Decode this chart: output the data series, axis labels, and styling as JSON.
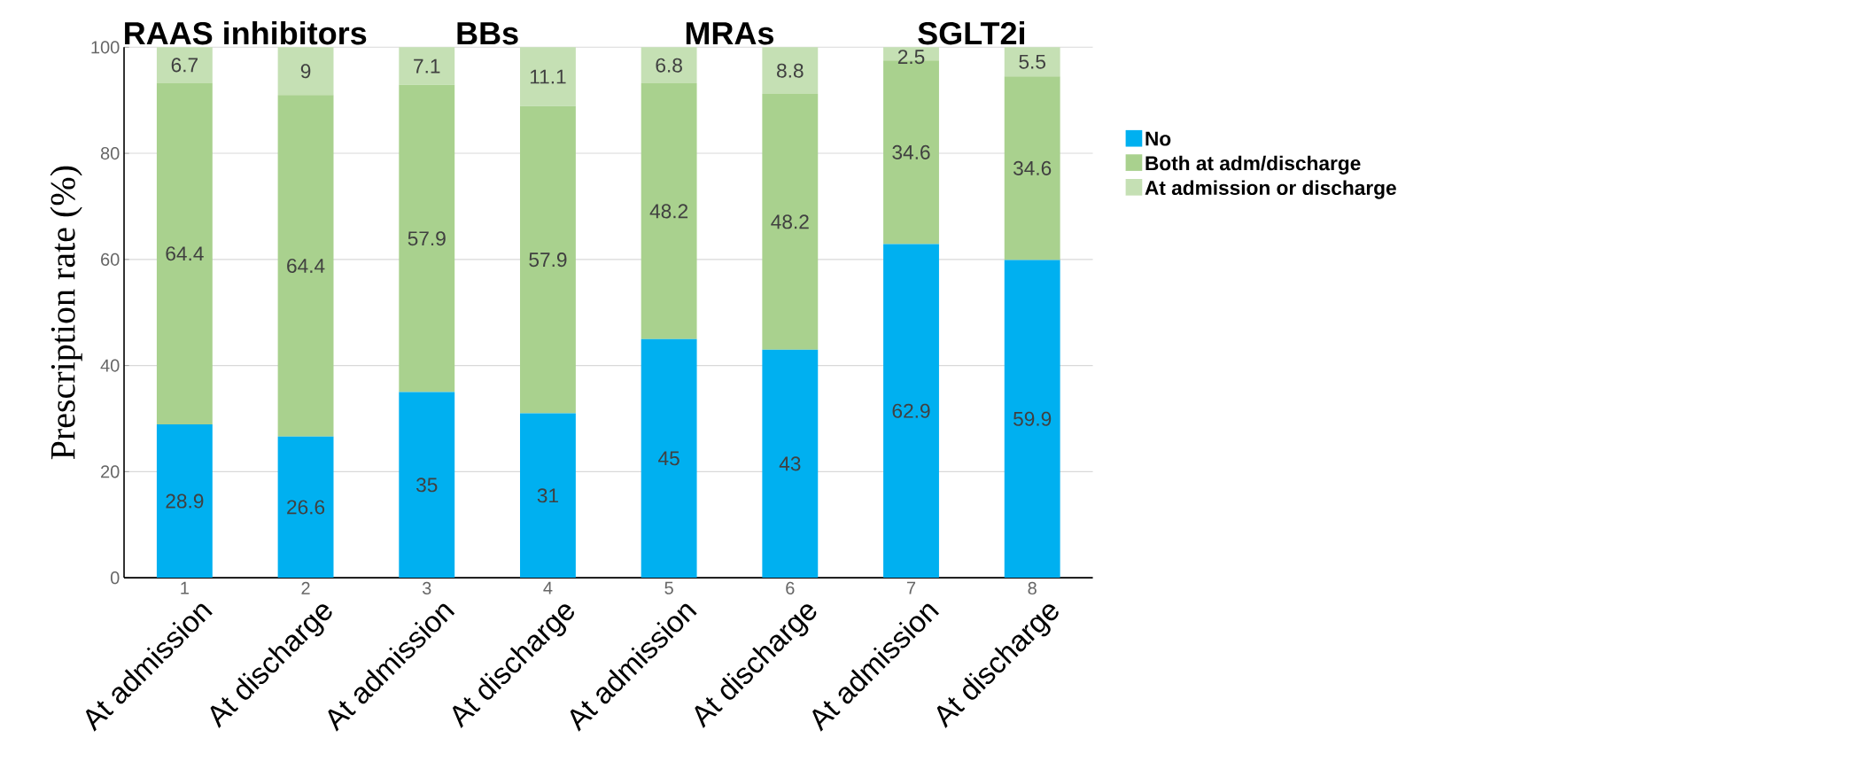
{
  "chart_data": {
    "type": "bar",
    "stacked": true,
    "ylabel": "Prescription rate (%)",
    "x": [
      1,
      2,
      3,
      4,
      5,
      6,
      7,
      8
    ],
    "xlim": [
      0.5,
      8.5
    ],
    "xticks": [
      1,
      2,
      3,
      4,
      5,
      6,
      7,
      8
    ],
    "ylim": [
      0,
      100
    ],
    "yticks": [
      0,
      20,
      40,
      60,
      80,
      100
    ],
    "grid": "y",
    "legend": "right",
    "data_labels": true,
    "series": [
      {
        "name": "No",
        "color": "#00b0f0",
        "values": [
          28.9,
          26.6,
          35,
          31,
          45,
          43,
          62.9,
          59.9
        ]
      },
      {
        "name": "Both at adm/discharge",
        "color": "#a9d18e",
        "values": [
          64.4,
          64.4,
          57.9,
          57.9,
          48.2,
          48.2,
          34.6,
          34.6
        ]
      },
      {
        "name": "At admission or discharge",
        "color": "#c5e0b4",
        "values": [
          6.7,
          9,
          7.1,
          11.1,
          6.8,
          8.8,
          2.5,
          5.5
        ]
      }
    ],
    "annotations": [
      "At admission",
      "At discharge",
      "At admission",
      "At discharge",
      "At admission",
      "At discharge",
      "At admission",
      "At discharge",
      "RAAS inhibitors",
      "BBs",
      "MRAs",
      "SGLT2i"
    ]
  }
}
